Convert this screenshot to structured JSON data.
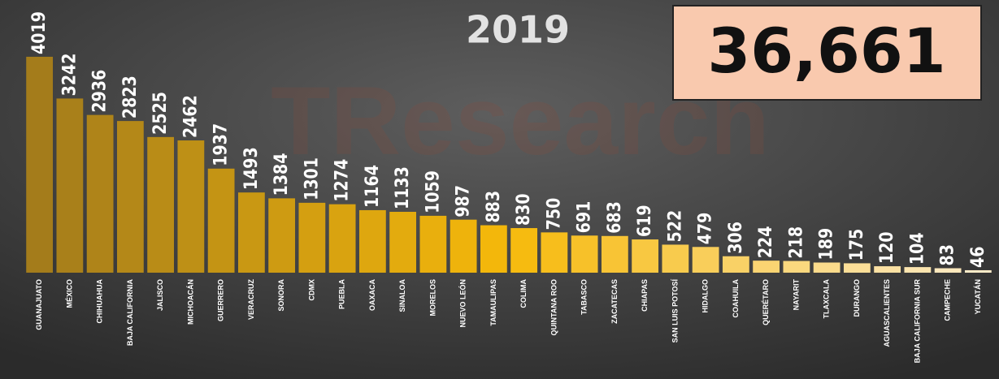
{
  "chart_data": {
    "type": "bar",
    "title": "2019",
    "total": "36,661",
    "watermark": "TResearch",
    "categories": [
      "GUANAJUATO",
      "MÉXICO",
      "CHIHUAHUA",
      "BAJA CALIFORNIA",
      "JALISCO",
      "MICHOACÁN",
      "GUERRERO",
      "VERACRUZ",
      "SONORA",
      "CDMX",
      "PUEBLA",
      "OAXACA",
      "SINALOA",
      "MORELOS",
      "NUEVO LEÓN",
      "TAMAULIPAS",
      "COLIMA",
      "QUINTANA ROO",
      "TABASCO",
      "ZACATECAS",
      "CHIAPAS",
      "SAN LUIS POTOSÍ",
      "HIDALGO",
      "COAHUILA",
      "QUERÉTARO",
      "NAYARIT",
      "TLAXCALA",
      "DURANGO",
      "AGUASCALIENTES",
      "BAJA CALIFORNIA SUR",
      "CAMPECHE",
      "YUCATÁN"
    ],
    "values": [
      4019,
      3242,
      2936,
      2823,
      2525,
      2462,
      1937,
      1493,
      1384,
      1301,
      1274,
      1164,
      1133,
      1059,
      987,
      883,
      830,
      750,
      691,
      683,
      619,
      522,
      479,
      306,
      224,
      218,
      189,
      175,
      120,
      104,
      83,
      46
    ],
    "colors": [
      "#a47c1b",
      "#f6b90a",
      "#fdebc8"
    ],
    "ylim": [
      0,
      5000
    ]
  }
}
